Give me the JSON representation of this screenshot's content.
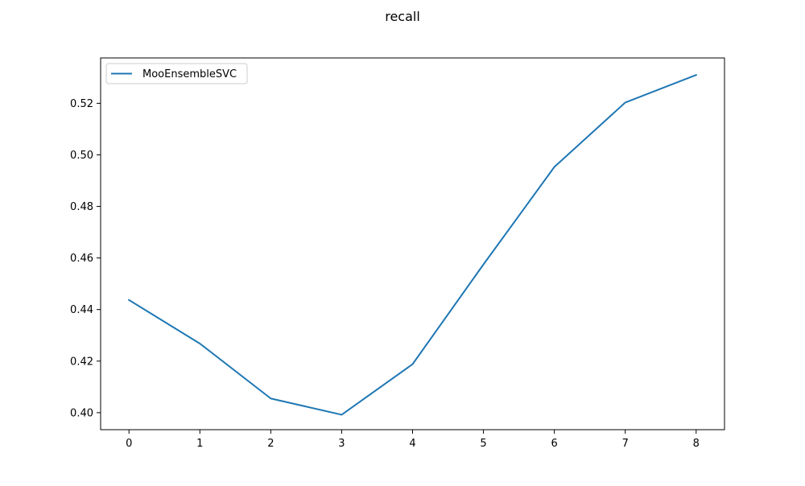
{
  "chart_data": {
    "type": "line",
    "title": "recall",
    "xlabel": "",
    "ylabel": "",
    "x": [
      0,
      1,
      2,
      3,
      4,
      5,
      6,
      7,
      8
    ],
    "xticks": [
      "0",
      "1",
      "2",
      "3",
      "4",
      "5",
      "6",
      "7",
      "8"
    ],
    "yticks": [
      "0.40",
      "0.42",
      "0.44",
      "0.46",
      "0.48",
      "0.50",
      "0.52"
    ],
    "xlim": [
      -0.4,
      8.4
    ],
    "ylim": [
      0.3934,
      0.5376
    ],
    "grid": false,
    "legend_position": "upper-left",
    "series": [
      {
        "name": "MooEnsembleSVC",
        "color": "#1f77b4",
        "values": [
          0.4437,
          0.4268,
          0.4055,
          0.3992,
          0.4188,
          0.4575,
          0.4953,
          0.5203,
          0.531
        ]
      }
    ]
  }
}
